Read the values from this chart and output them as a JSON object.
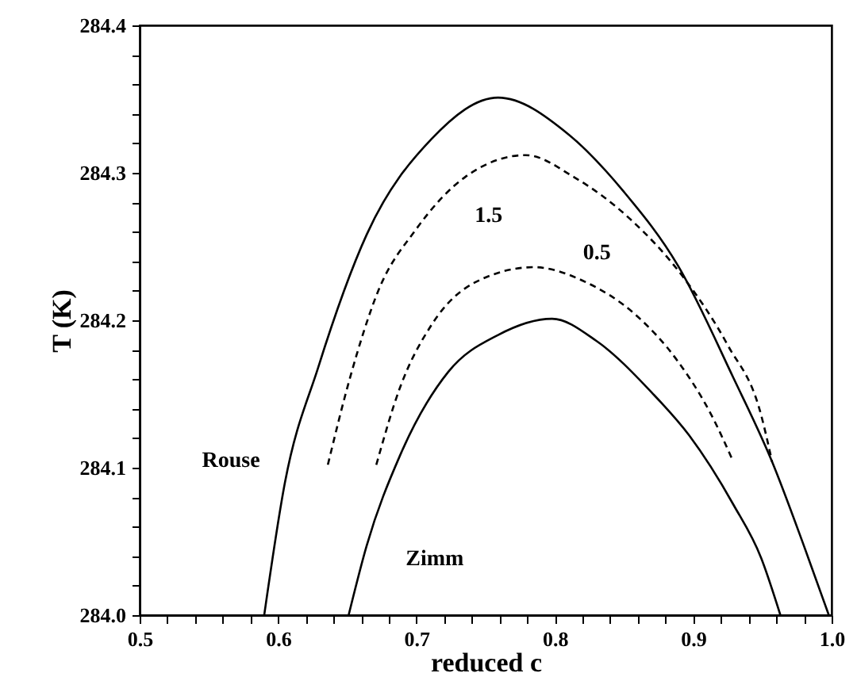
{
  "chart_data": {
    "type": "line",
    "xlabel": "reduced c",
    "ylabel": "T (K)",
    "xlim": [
      0.5,
      1.0
    ],
    "ylim": [
      284.0,
      284.4
    ],
    "xticks": [
      0.5,
      0.6,
      0.7,
      0.8,
      0.9,
      {
        "value": 1.0,
        "label": "1.0"
      },
      {
        "value": 0.52,
        "label": null
      },
      {
        "value": 0.54,
        "label": null
      },
      {
        "value": 0.56,
        "label": null
      },
      {
        "value": 0.58,
        "label": null
      },
      {
        "value": 0.62,
        "label": null
      },
      {
        "value": 0.64,
        "label": null
      },
      {
        "value": 0.66,
        "label": null
      },
      {
        "value": 0.68,
        "label": null
      },
      {
        "value": 0.72,
        "label": null
      },
      {
        "value": 0.74,
        "label": null
      },
      {
        "value": 0.76,
        "label": null
      },
      {
        "value": 0.78,
        "label": null
      },
      {
        "value": 0.82,
        "label": null
      },
      {
        "value": 0.84,
        "label": null
      },
      {
        "value": 0.86,
        "label": null
      },
      {
        "value": 0.88,
        "label": null
      },
      {
        "value": 0.92,
        "label": null
      },
      {
        "value": 0.94,
        "label": null
      },
      {
        "value": 0.96,
        "label": null
      },
      {
        "value": 0.98,
        "label": null
      }
    ],
    "yticks": [
      {
        "value": 284.0,
        "label": "284.0"
      },
      284.1,
      284.2,
      284.3,
      284.4,
      {
        "value": 284.02,
        "label": null
      },
      {
        "value": 284.04,
        "label": null
      },
      {
        "value": 284.06,
        "label": null
      },
      {
        "value": 284.08,
        "label": null
      },
      {
        "value": 284.12,
        "label": null
      },
      {
        "value": 284.14,
        "label": null
      },
      {
        "value": 284.16,
        "label": null
      },
      {
        "value": 284.18,
        "label": null
      },
      {
        "value": 284.22,
        "label": null
      },
      {
        "value": 284.24,
        "label": null
      },
      {
        "value": 284.26,
        "label": null
      },
      {
        "value": 284.28,
        "label": null
      },
      {
        "value": 284.32,
        "label": null
      },
      {
        "value": 284.34,
        "label": null
      },
      {
        "value": 284.36,
        "label": null
      },
      {
        "value": 284.38,
        "label": null
      }
    ],
    "grid": false,
    "legend": false,
    "marker": "none",
    "series": [
      {
        "name": "Rouse",
        "color": "#000000",
        "line_style": "solid",
        "x": [
          0.59,
          0.605,
          0.629,
          0.664,
          0.711,
          0.759,
          0.81,
          0.85,
          0.889,
          0.929,
          0.957,
          0.98,
          0.998
        ],
        "values": [
          284.0,
          284.09,
          284.168,
          284.258,
          284.323,
          284.351,
          284.326,
          284.287,
          284.237,
          284.161,
          284.104,
          284.047,
          284.0
        ]
      },
      {
        "name": "1.5",
        "color": "#000000",
        "line_style": "dashed",
        "x": [
          0.636,
          0.652,
          0.672,
          0.7,
          0.735,
          0.779,
          0.814,
          0.854,
          0.893,
          0.925,
          0.949,
          0.957
        ],
        "values": [
          284.102,
          284.161,
          284.219,
          284.262,
          284.297,
          284.312,
          284.297,
          284.269,
          284.229,
          284.183,
          284.136,
          284.104
        ]
      },
      {
        "name": "0.5",
        "color": "#000000",
        "line_style": "dashed",
        "x": [
          0.671,
          0.688,
          0.711,
          0.743,
          0.785,
          0.822,
          0.858,
          0.889,
          0.913,
          0.929
        ],
        "values": [
          284.102,
          284.154,
          284.197,
          284.226,
          284.236,
          284.226,
          284.204,
          284.172,
          284.136,
          284.104
        ]
      },
      {
        "name": "Zimm",
        "color": "#000000",
        "line_style": "solid",
        "x": [
          0.651,
          0.664,
          0.688,
          0.723,
          0.759,
          0.798,
          0.83,
          0.87,
          0.897,
          0.929,
          0.949,
          0.963
        ],
        "values": [
          284.0,
          284.047,
          284.108,
          284.165,
          284.19,
          284.201,
          284.186,
          284.151,
          284.122,
          284.075,
          284.039,
          284.0
        ]
      }
    ]
  }
}
